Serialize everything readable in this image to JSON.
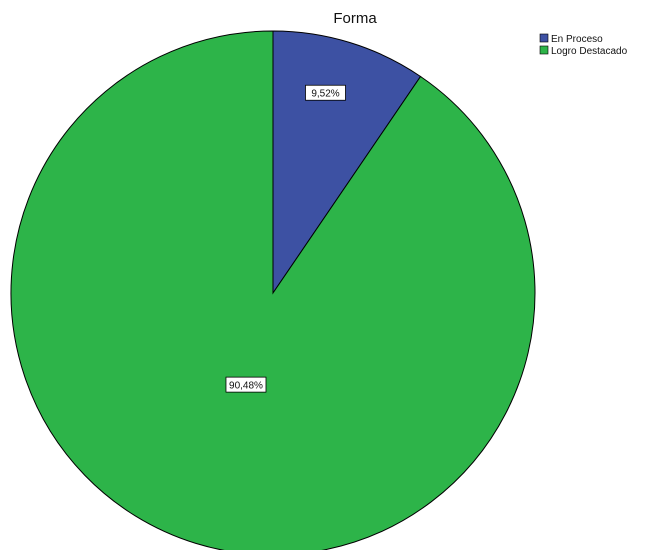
{
  "chart_data": {
    "type": "pie",
    "title": "Forma",
    "categories": [
      "En Proceso",
      "Logro Destacado"
    ],
    "values": [
      9.52,
      90.48
    ],
    "data_labels": [
      "9,52%",
      "90,48%"
    ],
    "colors": [
      "#3d51a3",
      "#2db449"
    ],
    "legend_position": "top-right"
  }
}
